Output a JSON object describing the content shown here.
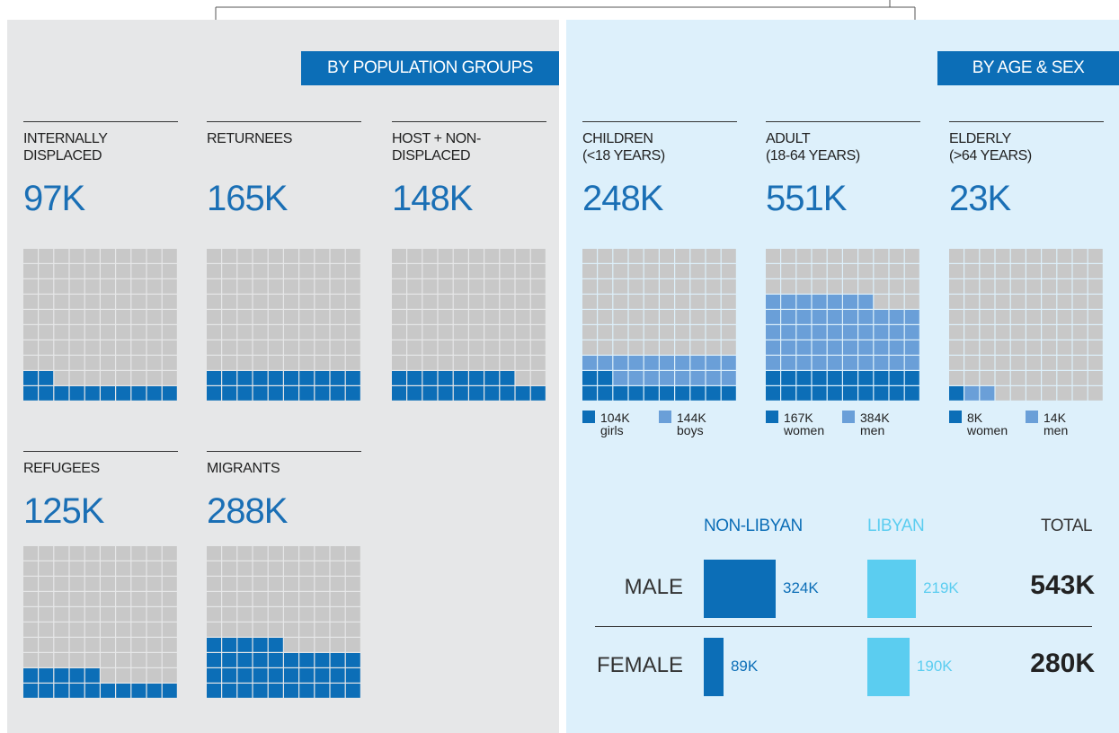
{
  "population_groups": {
    "heading": "BY POPULATION GROUPS",
    "groups": [
      {
        "lines": [
          "INTERNALLY",
          "DISPLACED"
        ],
        "value": "97K",
        "cells": 12
      },
      {
        "lines": [
          "RETURNEES"
        ],
        "value": "165K",
        "cells": 20
      },
      {
        "lines": [
          "HOST + NON-",
          "DISPLACED"
        ],
        "value": "148K",
        "cells": 18
      },
      {
        "lines": [
          "REFUGEES"
        ],
        "value": "125K",
        "cells": 15
      },
      {
        "lines": [
          "MIGRANTS"
        ],
        "value": "288K",
        "cells": 35
      }
    ]
  },
  "age_sex": {
    "heading": "BY AGE & SEX",
    "groups": [
      {
        "lines": [
          "CHILDREN",
          "(<18 YEARS)"
        ],
        "value": "248K",
        "segments": [
          {
            "value": "104K",
            "label": "girls",
            "cells": 12,
            "color": "#0c6eb7"
          },
          {
            "value": "144K",
            "label": "boys",
            "cells": 18,
            "color": "#6a9fd8"
          }
        ]
      },
      {
        "lines": [
          "ADULT",
          "(18-64 YEARS)"
        ],
        "value": "551K",
        "segments": [
          {
            "value": "167K",
            "label": "women",
            "cells": 20,
            "color": "#0c6eb7"
          },
          {
            "value": "384K",
            "label": "men",
            "cells": 47,
            "color": "#6a9fd8"
          }
        ]
      },
      {
        "lines": [
          "ELDERLY",
          "(>64 YEARS)"
        ],
        "value": "23K",
        "segments": [
          {
            "value": "8K",
            "label": "women",
            "cells": 1,
            "color": "#0c6eb7"
          },
          {
            "value": "14K",
            "label": "men",
            "cells": 2,
            "color": "#6a9fd8"
          }
        ]
      }
    ]
  },
  "sex_table": {
    "columns": [
      {
        "label": "NON-LIBYAN",
        "color": "#0c6eb7"
      },
      {
        "label": "LIBYAN",
        "color": "#5bcdf0"
      },
      {
        "label": "TOTAL",
        "color": "#333333"
      }
    ],
    "rows": [
      {
        "label": "MALE",
        "values": [
          324,
          219
        ],
        "value_labels": [
          "324K",
          "219K"
        ],
        "total": "543K"
      },
      {
        "label": "FEMALE",
        "values": [
          89,
          190
        ],
        "value_labels": [
          "89K",
          "190K"
        ],
        "total": "280K"
      }
    ]
  }
}
